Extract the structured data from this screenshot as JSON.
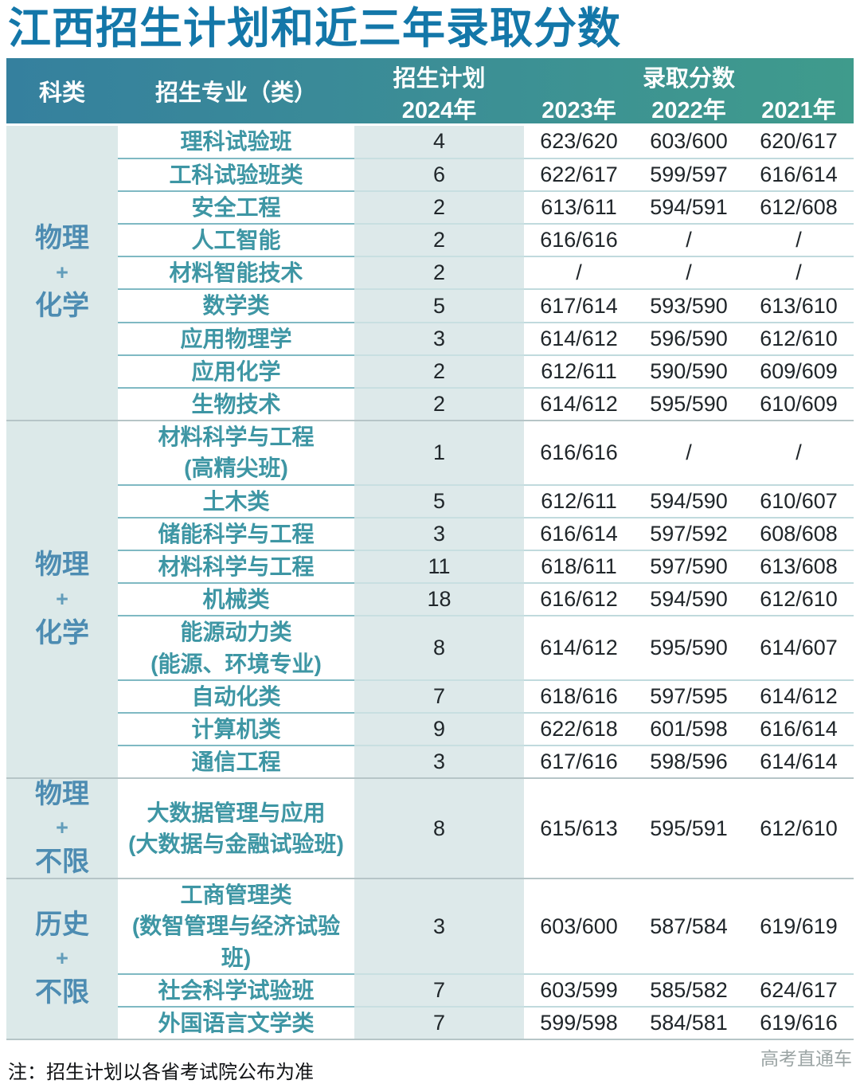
{
  "title": "江西招生计划和近三年录取分数",
  "header": {
    "col_category": "科类",
    "col_major": "招生专业（类）",
    "col_plan": "招生计划",
    "plan_year": "2024年",
    "col_scores": "录取分数",
    "score_years": [
      "2023年",
      "2022年",
      "2021年"
    ]
  },
  "groups": [
    {
      "category": [
        "物理",
        "+",
        "化学"
      ],
      "rows": [
        {
          "major": "理科试验班",
          "plan": "4",
          "s2023": "623/620",
          "s2022": "603/600",
          "s2021": "620/617"
        },
        {
          "major": "工科试验班类",
          "plan": "6",
          "s2023": "622/617",
          "s2022": "599/597",
          "s2021": "616/614"
        },
        {
          "major": "安全工程",
          "plan": "2",
          "s2023": "613/611",
          "s2022": "594/591",
          "s2021": "612/608"
        },
        {
          "major": "人工智能",
          "plan": "2",
          "s2023": "616/616",
          "s2022": "/",
          "s2021": "/"
        },
        {
          "major": "材料智能技术",
          "plan": "2",
          "s2023": "/",
          "s2022": "/",
          "s2021": "/"
        },
        {
          "major": "数学类",
          "plan": "5",
          "s2023": "617/614",
          "s2022": "593/590",
          "s2021": "613/610"
        },
        {
          "major": "应用物理学",
          "plan": "3",
          "s2023": "614/612",
          "s2022": "596/590",
          "s2021": "612/610"
        },
        {
          "major": "应用化学",
          "plan": "2",
          "s2023": "612/611",
          "s2022": "590/590",
          "s2021": "609/609"
        },
        {
          "major": "生物技术",
          "plan": "2",
          "s2023": "614/612",
          "s2022": "595/590",
          "s2021": "610/609"
        }
      ]
    },
    {
      "category": [
        "物理",
        "+",
        "化学"
      ],
      "rows": [
        {
          "major": "材料科学与工程",
          "major_sub": "(高精尖班)",
          "plan": "1",
          "s2023": "616/616",
          "s2022": "/",
          "s2021": "/"
        },
        {
          "major": "土木类",
          "plan": "5",
          "s2023": "612/611",
          "s2022": "594/590",
          "s2021": "610/607"
        },
        {
          "major": "储能科学与工程",
          "plan": "3",
          "s2023": "616/614",
          "s2022": "597/592",
          "s2021": "608/608"
        },
        {
          "major": "材料科学与工程",
          "plan": "11",
          "s2023": "618/611",
          "s2022": "597/590",
          "s2021": "613/608"
        },
        {
          "major": "机械类",
          "plan": "18",
          "s2023": "616/612",
          "s2022": "594/590",
          "s2021": "612/610"
        },
        {
          "major": "能源动力类",
          "major_sub": "(能源、环境专业)",
          "plan": "8",
          "s2023": "614/612",
          "s2022": "595/590",
          "s2021": "614/607"
        },
        {
          "major": "自动化类",
          "plan": "7",
          "s2023": "618/616",
          "s2022": "597/595",
          "s2021": "614/612"
        },
        {
          "major": "计算机类",
          "plan": "9",
          "s2023": "622/618",
          "s2022": "601/598",
          "s2021": "616/614"
        },
        {
          "major": "通信工程",
          "plan": "3",
          "s2023": "617/616",
          "s2022": "598/596",
          "s2021": "614/614"
        }
      ]
    },
    {
      "category": [
        "物理",
        "+",
        "不限"
      ],
      "rows": [
        {
          "major": "大数据管理与应用",
          "major_sub": "(大数据与金融试验班)",
          "plan": "8",
          "s2023": "615/613",
          "s2022": "595/591",
          "s2021": "612/610"
        }
      ]
    },
    {
      "category": [
        "历史",
        "+",
        "不限"
      ],
      "rows": [
        {
          "major": "工商管理类",
          "major_sub": "(数智管理与经济试验班)",
          "plan": "3",
          "s2023": "603/600",
          "s2022": "587/584",
          "s2021": "619/619"
        },
        {
          "major": "社会科学试验班",
          "plan": "7",
          "s2023": "603/599",
          "s2022": "585/582",
          "s2021": "624/617"
        },
        {
          "major": "外国语言文学类",
          "plan": "7",
          "s2023": "599/598",
          "s2022": "584/581",
          "s2021": "619/616"
        }
      ]
    }
  ],
  "note": "注：招生计划以各省考试院公布为准",
  "watermark": "高考直通车",
  "colors": {
    "title": "#1377a9",
    "header_gradient_left": "#35809e",
    "header_gradient_right": "#3f9b8c",
    "category_text": "#4d8cb2",
    "major_text": "#3e96a4",
    "tint_bg": "#dce9e9",
    "score_text": "#20262a"
  }
}
